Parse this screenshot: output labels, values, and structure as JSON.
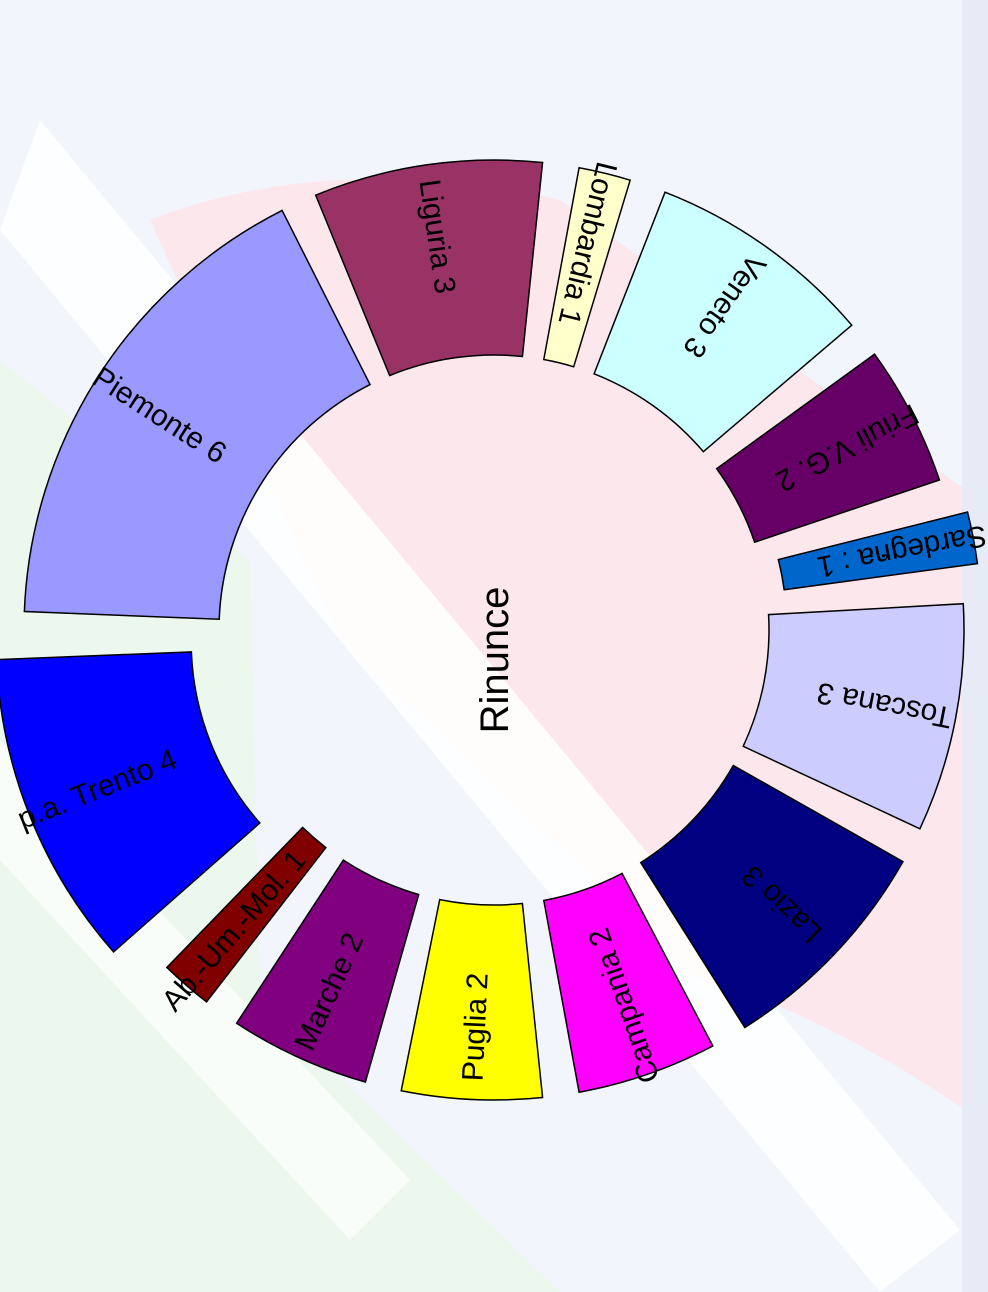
{
  "chart_data": {
    "type": "pie",
    "variant": "donut",
    "title": "Rinunce",
    "start_angle_deg": 180,
    "direction": "clockwise",
    "slices": [
      {
        "label": "Piemonte 6",
        "value": 6,
        "color": "#9999ff"
      },
      {
        "label": "Liguria  3",
        "value": 3,
        "color": "#993366"
      },
      {
        "label": "Lombardia 1",
        "value": 1,
        "color": "#ffffcc"
      },
      {
        "label": "Veneto 3",
        "value": 3,
        "color": "#ccffff"
      },
      {
        "label": "Friuli V.G. 2",
        "value": 2,
        "color": "#660066"
      },
      {
        "label": "Sardegna : 1",
        "value": 1,
        "color": "#0066cc"
      },
      {
        "label": "Toscana 3",
        "value": 3,
        "color": "#ccccff"
      },
      {
        "label": "Lazio 3",
        "value": 3,
        "color": "#000080"
      },
      {
        "label": "Campania 2",
        "value": 2,
        "color": "#ff00ff"
      },
      {
        "label": "Puglia 2",
        "value": 2,
        "color": "#ffff00"
      },
      {
        "label": "Marche 2",
        "value": 2,
        "color": "#800080"
      },
      {
        "label": "Ab.-Um.-Mol. 1",
        "value": 1,
        "color": "#800000"
      },
      {
        "label": "p.a. Trento 4",
        "value": 4,
        "color": "#0000ff"
      }
    ],
    "stray_mark": ";",
    "legend": "none"
  }
}
